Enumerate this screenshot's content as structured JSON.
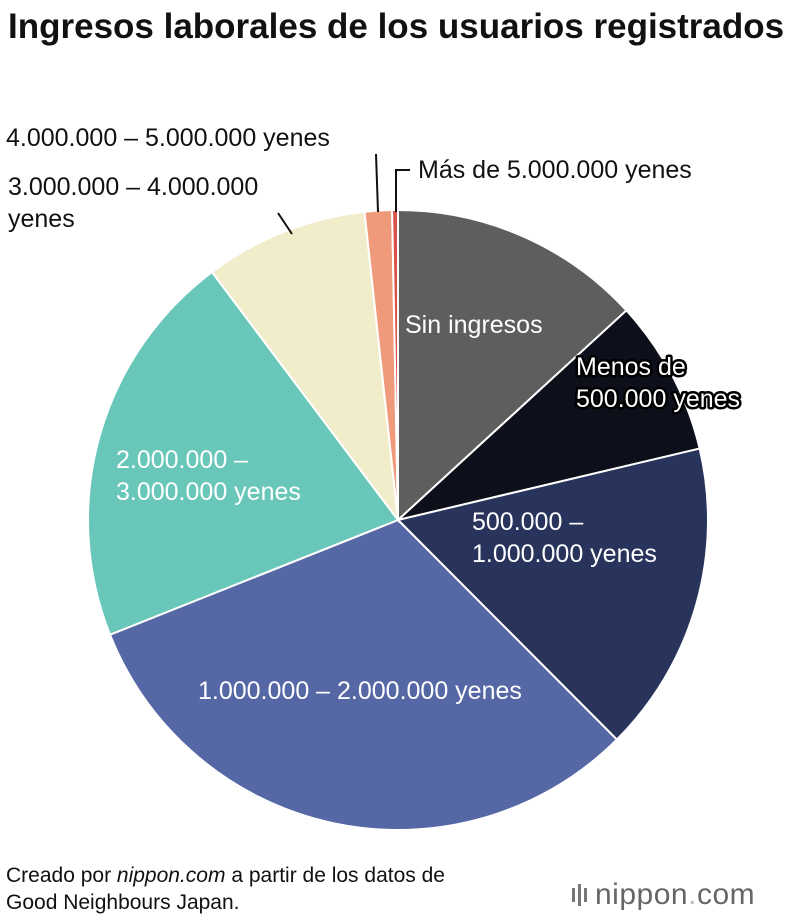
{
  "title": "Ingresos laborales de los usuarios registrados",
  "footer": {
    "prefix": "Creado por",
    "site": "nippon.com",
    "suffix": "a partir de los datos de",
    "line2": "Good Neighbours Japan."
  },
  "logo": {
    "name": "nippon",
    "dot": ".",
    "tld": "com"
  },
  "chart_data": {
    "type": "pie",
    "title": "Ingresos laborales de los usuarios registrados",
    "start_angle_deg": 0,
    "direction": "clockwise",
    "slices": [
      {
        "label": "Sin ingresos",
        "value": 13,
        "color": "#5e5e5e",
        "label_color": "#ffffff",
        "label_lines": [
          "Sin ingresos"
        ]
      },
      {
        "label": "Menos de 500.000 yenes",
        "value": 8,
        "color": "#0d0f1a",
        "label_color": "#ffffff",
        "label_lines": [
          "Menos de",
          "500.000 yenes"
        ]
      },
      {
        "label": "500.000 – 1.000.000 yenes",
        "value": 16,
        "color": "#28345c",
        "label_color": "#ffffff",
        "label_lines": [
          "500.000 –",
          "1.000.000 yenes"
        ]
      },
      {
        "label": "1.000.000 – 2.000.000 yenes",
        "value": 31,
        "color": "#5567a5",
        "label_color": "#ffffff",
        "label_lines": [
          "1.000.000 – 2.000.000 yenes"
        ]
      },
      {
        "label": "2.000.000 – 3.000.000 yenes",
        "value": 20.5,
        "color": "#69c7b9",
        "label_color": "#ffffff",
        "label_lines": [
          "2.000.000 –",
          "3.000.000 yenes"
        ]
      },
      {
        "label": "3.000.000 – 4.000.000 yenes",
        "value": 8.4,
        "color": "#f1edca",
        "label_color": "#111111",
        "label_lines": [
          "3.000.000 – 4.000.000",
          "yenes"
        ]
      },
      {
        "label": "4.000.000 – 5.000.000 yenes",
        "value": 1.4,
        "color": "#ef9a7b",
        "label_color": "#111111",
        "label_lines": [
          "4.000.000 – 5.000.000 yenes"
        ]
      },
      {
        "label": "Más de 5.000.000 yenes",
        "value": 0.3,
        "color": "#d9534a",
        "label_color": "#111111",
        "label_lines": [
          "Más de 5.000.000 yenes"
        ]
      }
    ]
  }
}
